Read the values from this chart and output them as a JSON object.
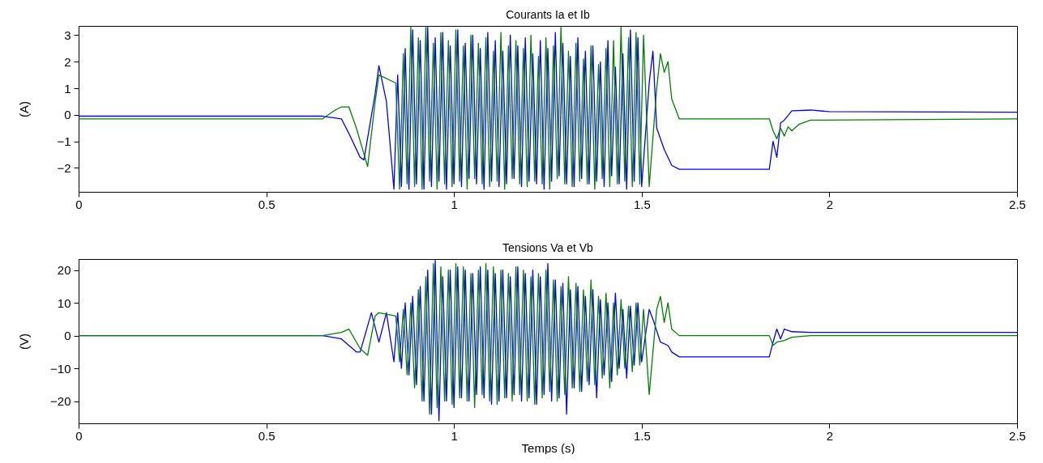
{
  "chart_data": [
    {
      "type": "line",
      "title": "Courants Ia et Ib",
      "ylabel": "(A)",
      "xlim": [
        0,
        2.5
      ],
      "xticks": [
        0,
        0.5,
        1,
        1.5,
        2,
        2.5
      ],
      "ylim": [
        -2.9,
        3.35
      ],
      "yticks": [
        -2,
        -1,
        0,
        1,
        2,
        3
      ],
      "series": [
        {
          "color": "#0000ff",
          "x": [
            0,
            0.3,
            0.65,
            0.7,
            0.72,
            0.75,
            0.76,
            0.79,
            0.8,
            0.82,
            0.84,
            0.85,
            0.86,
            0.87,
            0.88,
            0.89,
            0.9,
            0.91,
            0.92,
            0.93,
            0.94,
            0.95,
            0.96,
            0.97,
            0.98,
            0.99,
            1.0,
            1.01,
            1.02,
            1.03,
            1.04,
            1.05,
            1.06,
            1.07,
            1.08,
            1.09,
            1.1,
            1.11,
            1.12,
            1.13,
            1.14,
            1.15,
            1.16,
            1.17,
            1.18,
            1.19,
            1.2,
            1.21,
            1.22,
            1.23,
            1.24,
            1.25,
            1.26,
            1.27,
            1.28,
            1.29,
            1.3,
            1.31,
            1.32,
            1.33,
            1.34,
            1.35,
            1.36,
            1.37,
            1.38,
            1.39,
            1.4,
            1.41,
            1.42,
            1.43,
            1.44,
            1.45,
            1.46,
            1.47,
            1.48,
            1.49,
            1.5,
            1.52,
            1.53,
            1.54,
            1.56,
            1.58,
            1.6,
            1.84,
            1.85,
            1.86,
            1.87,
            1.88,
            1.9,
            1.95,
            2.0,
            2.5
          ],
          "values": [
            -0.05,
            -0.05,
            -0.05,
            -0.15,
            -0.7,
            -1.6,
            -1.7,
            0.8,
            1.85,
            0.5,
            -2.8,
            1.5,
            -2.7,
            2.5,
            -2.8,
            3.2,
            -2.6,
            2.8,
            -2.8,
            3.3,
            -2.7,
            2.9,
            -2.5,
            3.1,
            -2.8,
            2.6,
            -2.6,
            3.2,
            -2.7,
            2.7,
            -2.4,
            3.0,
            -2.6,
            2.5,
            -2.8,
            3.1,
            -2.5,
            2.8,
            -2.7,
            2.4,
            -2.6,
            3.0,
            -2.4,
            2.6,
            -2.7,
            2.9,
            -2.5,
            2.3,
            -2.6,
            2.8,
            -2.8,
            2.5,
            -2.5,
            3.1,
            -2.3,
            2.7,
            -2.6,
            2.2,
            -2.7,
            2.9,
            -2.4,
            2.4,
            -2.6,
            2.6,
            -2.5,
            2.0,
            -2.7,
            2.8,
            -2.3,
            1.8,
            -2.6,
            2.3,
            -2.8,
            3.2,
            -2.5,
            2.9,
            -2.7,
            1.2,
            2.4,
            -0.5,
            -1.3,
            -1.9,
            -2.05,
            -2.05,
            -1.0,
            -1.6,
            -0.3,
            -0.2,
            0.15,
            0.18,
            0.12,
            0.1
          ]
        },
        {
          "color": "#008000",
          "x": [
            0,
            0.3,
            0.65,
            0.68,
            0.7,
            0.72,
            0.74,
            0.77,
            0.79,
            0.8,
            0.845,
            0.855,
            0.865,
            0.875,
            0.885,
            0.895,
            0.905,
            0.915,
            0.925,
            0.935,
            0.945,
            0.955,
            0.965,
            0.975,
            0.985,
            0.995,
            1.005,
            1.015,
            1.025,
            1.035,
            1.045,
            1.055,
            1.065,
            1.075,
            1.085,
            1.095,
            1.105,
            1.115,
            1.125,
            1.135,
            1.145,
            1.155,
            1.165,
            1.175,
            1.185,
            1.195,
            1.205,
            1.215,
            1.225,
            1.235,
            1.245,
            1.255,
            1.265,
            1.275,
            1.285,
            1.295,
            1.305,
            1.315,
            1.325,
            1.335,
            1.345,
            1.355,
            1.365,
            1.375,
            1.385,
            1.395,
            1.405,
            1.415,
            1.425,
            1.435,
            1.445,
            1.455,
            1.465,
            1.475,
            1.485,
            1.495,
            1.505,
            1.52,
            1.54,
            1.55,
            1.56,
            1.57,
            1.58,
            1.6,
            1.84,
            1.85,
            1.86,
            1.87,
            1.88,
            1.89,
            1.9,
            1.92,
            1.95,
            2.5
          ],
          "values": [
            -0.15,
            -0.15,
            -0.15,
            0.15,
            0.3,
            0.3,
            -0.5,
            -1.95,
            0.5,
            1.5,
            1.2,
            -2.8,
            2.3,
            -2.6,
            3.3,
            -2.7,
            2.9,
            -2.8,
            3.3,
            -2.5,
            2.7,
            -2.8,
            3.1,
            -2.6,
            2.8,
            -2.7,
            3.2,
            -2.5,
            2.6,
            -2.8,
            3.0,
            -2.4,
            2.7,
            -2.6,
            2.9,
            -2.7,
            2.4,
            -2.5,
            3.1,
            -2.8,
            2.6,
            -2.4,
            2.8,
            -2.6,
            2.5,
            -2.7,
            3.0,
            -2.5,
            2.2,
            -2.6,
            2.9,
            -2.8,
            2.6,
            -2.4,
            3.3,
            -2.6,
            2.4,
            -2.7,
            2.7,
            -2.5,
            2.1,
            -2.6,
            2.6,
            -2.8,
            1.9,
            -2.4,
            2.5,
            -2.7,
            2.8,
            -2.6,
            3.3,
            -2.5,
            2.9,
            -2.7,
            3.1,
            -2.6,
            3.0,
            -2.7,
            1.0,
            2.3,
            1.6,
            2.0,
            0.6,
            -0.15,
            -0.15,
            -0.6,
            -0.9,
            -0.5,
            -0.8,
            -0.45,
            -0.6,
            -0.35,
            -0.2,
            -0.15
          ]
        }
      ]
    },
    {
      "type": "line",
      "title": "Tensions Va et Vb",
      "xlabel": "Temps (s)",
      "ylabel": "(V)",
      "xlim": [
        0,
        2.5
      ],
      "xticks": [
        0,
        0.5,
        1,
        1.5,
        2,
        2.5
      ],
      "ylim": [
        -26.8,
        23.4
      ],
      "yticks": [
        -20,
        -10,
        0,
        10,
        20
      ],
      "series": [
        {
          "color": "#0000ff",
          "x": [
            0,
            0.65,
            0.7,
            0.72,
            0.74,
            0.75,
            0.78,
            0.8,
            0.82,
            0.84,
            0.85,
            0.86,
            0.87,
            0.88,
            0.89,
            0.9,
            0.91,
            0.92,
            0.93,
            0.94,
            0.95,
            0.96,
            0.97,
            0.98,
            0.99,
            1.0,
            1.01,
            1.02,
            1.03,
            1.04,
            1.05,
            1.06,
            1.07,
            1.08,
            1.09,
            1.1,
            1.11,
            1.12,
            1.13,
            1.14,
            1.15,
            1.16,
            1.17,
            1.18,
            1.19,
            1.2,
            1.21,
            1.22,
            1.23,
            1.24,
            1.25,
            1.26,
            1.27,
            1.28,
            1.29,
            1.3,
            1.31,
            1.32,
            1.33,
            1.34,
            1.35,
            1.36,
            1.37,
            1.38,
            1.39,
            1.4,
            1.41,
            1.42,
            1.43,
            1.44,
            1.45,
            1.46,
            1.47,
            1.48,
            1.49,
            1.5,
            1.52,
            1.53,
            1.55,
            1.57,
            1.58,
            1.6,
            1.84,
            1.85,
            1.86,
            1.87,
            1.88,
            1.9,
            1.95,
            2.5
          ],
          "values": [
            0,
            0,
            -1,
            -3,
            -5,
            -5,
            7,
            -2,
            7,
            -8,
            7,
            -10,
            10,
            -12,
            12,
            -15,
            15,
            -20,
            20,
            -24,
            23,
            -26,
            18,
            -20,
            20,
            -22,
            21,
            -19,
            20,
            -20,
            19,
            -18,
            21,
            -19,
            20,
            -21,
            19,
            -20,
            20,
            -19,
            18,
            -18,
            21,
            -20,
            19,
            -19,
            20,
            -21,
            18,
            -18,
            22,
            -20,
            17,
            -19,
            16,
            -24,
            14,
            -16,
            15,
            -17,
            12,
            -15,
            14,
            -19,
            11,
            -12,
            10,
            -14,
            13,
            -10,
            8,
            -13,
            9,
            -9,
            10,
            -8,
            8,
            5,
            -2,
            -3,
            -5,
            -6.5,
            -6.5,
            -2,
            2,
            -1,
            2,
            1.2,
            1,
            1
          ]
        },
        {
          "color": "#008000",
          "x": [
            0,
            0.65,
            0.7,
            0.72,
            0.75,
            0.77,
            0.79,
            0.8,
            0.845,
            0.855,
            0.865,
            0.875,
            0.885,
            0.895,
            0.905,
            0.915,
            0.925,
            0.935,
            0.945,
            0.955,
            0.965,
            0.975,
            0.985,
            0.995,
            1.005,
            1.015,
            1.025,
            1.035,
            1.045,
            1.055,
            1.065,
            1.075,
            1.085,
            1.095,
            1.105,
            1.115,
            1.125,
            1.135,
            1.145,
            1.155,
            1.165,
            1.175,
            1.185,
            1.195,
            1.205,
            1.215,
            1.225,
            1.235,
            1.245,
            1.255,
            1.265,
            1.275,
            1.285,
            1.295,
            1.305,
            1.315,
            1.325,
            1.335,
            1.345,
            1.355,
            1.365,
            1.375,
            1.385,
            1.395,
            1.405,
            1.415,
            1.425,
            1.435,
            1.445,
            1.455,
            1.465,
            1.475,
            1.485,
            1.495,
            1.505,
            1.52,
            1.54,
            1.55,
            1.56,
            1.57,
            1.58,
            1.6,
            1.84,
            1.85,
            1.86,
            1.88,
            1.9,
            1.95,
            2.0,
            2.5
          ],
          "values": [
            0,
            0,
            1,
            2,
            -4,
            -6,
            6,
            7,
            6,
            -8,
            8,
            -12,
            10,
            -16,
            14,
            -20,
            18,
            -24,
            22,
            -22,
            21,
            -20,
            20,
            -21,
            22,
            -19,
            21,
            -20,
            19,
            -22,
            20,
            -18,
            22,
            -20,
            21,
            -21,
            20,
            -19,
            19,
            -20,
            21,
            -18,
            20,
            -20,
            18,
            -21,
            19,
            -19,
            20,
            -17,
            17,
            -20,
            15,
            -18,
            18,
            -16,
            16,
            -17,
            14,
            -14,
            17,
            -15,
            12,
            -13,
            13,
            -16,
            10,
            -12,
            11,
            -10,
            9,
            -11,
            10,
            -9,
            8,
            -18,
            8,
            12,
            4,
            10,
            2,
            0,
            0,
            -3,
            -2,
            -1.5,
            -0.5,
            0,
            0,
            0
          ]
        }
      ]
    }
  ]
}
